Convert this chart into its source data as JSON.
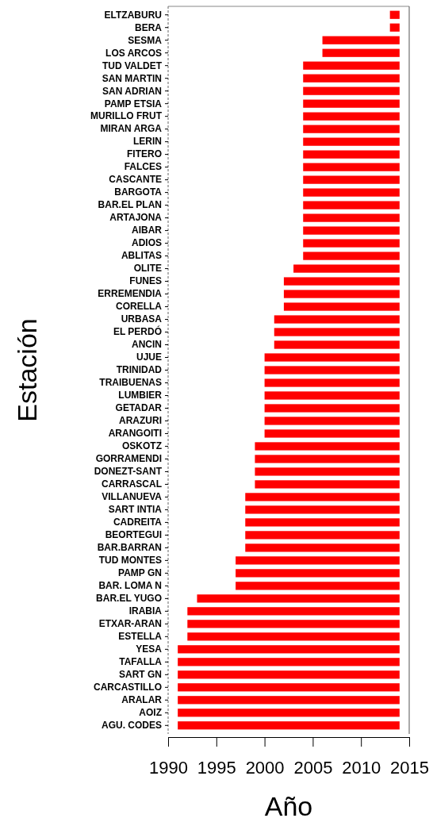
{
  "chart_data": {
    "type": "bar",
    "orientation": "horizontal",
    "xlabel": "Año",
    "ylabel": "Estación",
    "categories": [
      "ELTZABURU",
      "BERA",
      "SESMA",
      "LOS ARCOS",
      "TUD VALDET",
      "SAN MARTIN",
      "SAN ADRIAN",
      "PAMP ETSIA",
      "MURILLO FRUT",
      "MIRAN ARGA",
      "LERIN",
      "FITERO",
      "FALCES",
      "CASCANTE",
      "BARGOTA",
      "BAR.EL PLAN",
      "ARTAJONA",
      "AIBAR",
      "ADIOS",
      "ABLITAS",
      "OLITE",
      "FUNES",
      "ERREMENDIA",
      "CORELLA",
      "URBASA",
      "EL PERDÓ",
      "ANCIN",
      "UJUE",
      "TRINIDAD",
      "TRAIBUENAS",
      "LUMBIER",
      "GETADAR",
      "ARAZURI",
      "ARANGOITI",
      "OSKOTZ",
      "GORRAMENDI",
      "DONEZT-SANT",
      "CARRASCAL",
      "VILLANUEVA",
      "SART INTIA",
      "CADREITA",
      "BEORTEGUI",
      "BAR.BARRAN",
      "TUD MONTES",
      "PAMP GN",
      "BAR. LOMA N",
      "BAR.EL YUGO",
      "IRABIA",
      "ETXAR-ARAN",
      "ESTELLA",
      "YESA",
      "TAFALLA",
      "SART GN",
      "CARCASTILLO",
      "ARALAR",
      "AOIZ",
      "AGU. CODES"
    ],
    "base": [
      2013,
      2013,
      2006,
      2006,
      2004,
      2004,
      2004,
      2004,
      2004,
      2004,
      2004,
      2004,
      2004,
      2004,
      2004,
      2004,
      2004,
      2004,
      2004,
      2004,
      2003,
      2002,
      2002,
      2002,
      2001,
      2001,
      2001,
      2000,
      2000,
      2000,
      2000,
      2000,
      2000,
      2000,
      1999,
      1999,
      1999,
      1999,
      1998,
      1998,
      1998,
      1998,
      1998,
      1997,
      1997,
      1997,
      1993,
      1992,
      1992,
      1992,
      1991,
      1991,
      1991,
      1991,
      1991,
      1991,
      1991
    ],
    "values": [
      1,
      1,
      8,
      8,
      10,
      10,
      10,
      10,
      10,
      10,
      10,
      10,
      10,
      10,
      10,
      10,
      10,
      10,
      10,
      10,
      11,
      12,
      12,
      12,
      13,
      13,
      13,
      14,
      14,
      14,
      14,
      14,
      14,
      14,
      15,
      15,
      15,
      15,
      16,
      16,
      16,
      16,
      16,
      17,
      17,
      17,
      21,
      22,
      22,
      22,
      23,
      23,
      23,
      23,
      23,
      23,
      23
    ],
    "color": "#ff0000",
    "xlim": [
      1990,
      2015
    ],
    "xticks": [
      1990,
      1995,
      2000,
      2005,
      2010,
      2015
    ]
  }
}
